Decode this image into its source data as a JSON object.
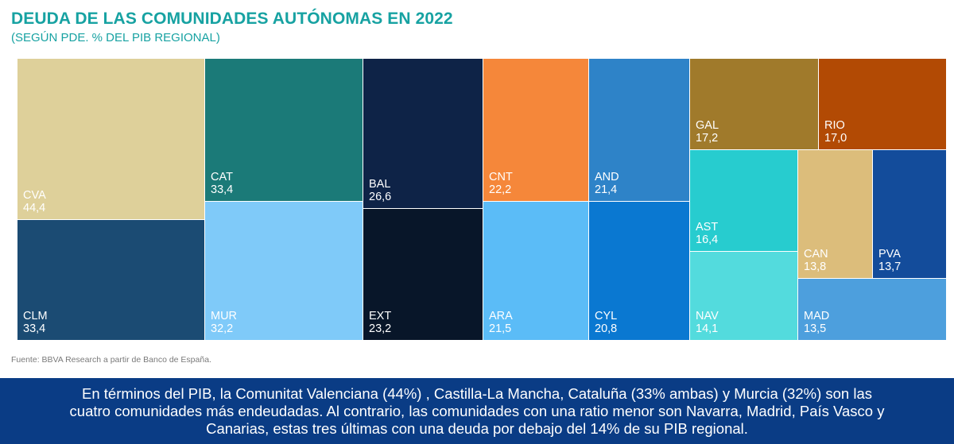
{
  "chart_data": {
    "type": "treemap",
    "title": "DEUDA DE LAS COMUNIDADES AUTÓNOMAS EN 2022",
    "subtitle": "(SEGÚN PDE. % DEL PIB REGIONAL)",
    "items": [
      {
        "label": "CVA",
        "value_text": "44,4",
        "value": 44.4,
        "color": "#ded09a"
      },
      {
        "label": "CLM",
        "value_text": "33,4",
        "value": 33.4,
        "color": "#1b4b73"
      },
      {
        "label": "CAT",
        "value_text": "33,4",
        "value": 33.4,
        "color": "#1b7a78"
      },
      {
        "label": "MUR",
        "value_text": "32,2",
        "value": 32.2,
        "color": "#7fcaf9"
      },
      {
        "label": "BAL",
        "value_text": "26,6",
        "value": 26.6,
        "color": "#0e2347"
      },
      {
        "label": "EXT",
        "value_text": "23,2",
        "value": 23.2,
        "color": "#081629"
      },
      {
        "label": "CNT",
        "value_text": "22,2",
        "value": 22.2,
        "color": "#f5873a"
      },
      {
        "label": "ARA",
        "value_text": "21,5",
        "value": 21.5,
        "color": "#5bbcf7"
      },
      {
        "label": "AND",
        "value_text": "21,4",
        "value": 21.4,
        "color": "#2e83c8"
      },
      {
        "label": "CYL",
        "value_text": "20,8",
        "value": 20.8,
        "color": "#0a78d1"
      },
      {
        "label": "GAL",
        "value_text": "17,2",
        "value": 17.2,
        "color": "#a07a2b"
      },
      {
        "label": "RIO",
        "value_text": "17,0",
        "value": 17.0,
        "color": "#b24a04"
      },
      {
        "label": "AST",
        "value_text": "16,4",
        "value": 16.4,
        "color": "#27cccf"
      },
      {
        "label": "NAV",
        "value_text": "14,1",
        "value": 14.1,
        "color": "#53dbdd"
      },
      {
        "label": "CAN",
        "value_text": "13,8",
        "value": 13.8,
        "color": "#dcbd7b"
      },
      {
        "label": "PVA",
        "value_text": "13,7",
        "value": 13.7,
        "color": "#134c9b"
      },
      {
        "label": "MAD",
        "value_text": "13,5",
        "value": 13.5,
        "color": "#4d9fdd"
      }
    ]
  },
  "source": "Fuente: BBVA Research a partir de Banco de España.",
  "banner": {
    "line1": "En términos del PIB, la Comunitat Valenciana (44%) , Castilla-La Mancha, Cataluña (33% ambas) y Murcia (32%)  son las",
    "line2": "cuatro comunidades más endeudadas. Al contrario, las comunidades con una ratio menor son Navarra, Madrid, País Vasco y",
    "line3": "Canarias, estas tres últimas  con una deuda por debajo del 14% de su PIB regional."
  }
}
